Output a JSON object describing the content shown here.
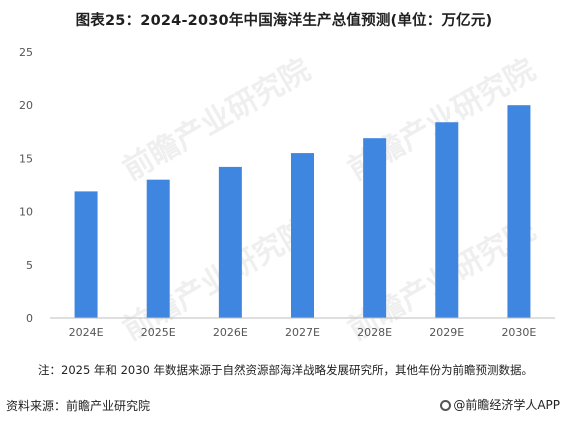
{
  "chart_data": {
    "type": "bar",
    "title": "图表25：2024-2030年中国海洋生产总值预测(单位：万亿元)",
    "categories": [
      "2024E",
      "2025E",
      "2026E",
      "2027E",
      "2028E",
      "2029E",
      "2030E"
    ],
    "values": [
      11.9,
      13.0,
      14.2,
      15.5,
      16.9,
      18.4,
      20.0
    ],
    "ylim": [
      0,
      25
    ],
    "yticks": [
      "0",
      "5",
      "10",
      "15",
      "20",
      "25"
    ],
    "bar_color": "#3f86e0",
    "grid": false,
    "legend": "none"
  },
  "note": "注：2025 年和 2030 年数据来源于自然资源部海洋战略发展研究所，其他年份为前瞻预测数据。",
  "source": "资料来源：前瞻产业研究院",
  "brand": "@前瞻经济学人APP",
  "watermark": "前瞻产业研究院"
}
